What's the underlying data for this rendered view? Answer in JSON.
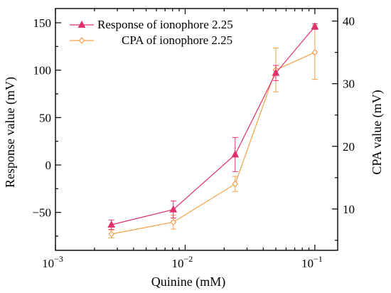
{
  "chart_data": {
    "type": "line",
    "x_scale": "log",
    "xlabel": "Quinine (mM)",
    "ylabel_left": "Response value (mV)",
    "ylabel_right": "CPA value (mV)",
    "xlim": [
      0.001,
      0.15
    ],
    "ylim_left": [
      -90,
      165
    ],
    "ylim_right": [
      3.4,
      42
    ],
    "x_ticks": [
      {
        "value": 0.001,
        "base": "10",
        "exp": "−3"
      },
      {
        "value": 0.01,
        "base": "10",
        "exp": "−2"
      },
      {
        "value": 0.1,
        "base": "10",
        "exp": "−1"
      }
    ],
    "y_ticks_left": [
      -50,
      0,
      50,
      100,
      150
    ],
    "y_ticks_left_labels": [
      "−50",
      "0",
      "50",
      "100",
      "150"
    ],
    "y_ticks_right": [
      10,
      20,
      30,
      40
    ],
    "y_ticks_right_labels": [
      "10",
      "20",
      "30",
      "40"
    ],
    "x": [
      0.0027,
      0.0081,
      0.0243,
      0.05,
      0.1
    ],
    "series": [
      {
        "name": "Response of ionophore 2.25",
        "axis": "left",
        "color": "#e0306a",
        "marker": "triangle",
        "values": [
          -63,
          -47,
          11,
          97,
          146
        ],
        "errors": [
          5,
          9,
          18,
          8,
          3
        ]
      },
      {
        "name": "CPA of ionophore 2.25",
        "axis": "right",
        "color": "#f5a04a",
        "marker": "diamond-open",
        "values": [
          6.0,
          7.9,
          14.0,
          32.2,
          35.0
        ],
        "errors": [
          0.6,
          1.1,
          1.2,
          3.5,
          4.3
        ]
      }
    ],
    "legend_position": "top-right"
  }
}
